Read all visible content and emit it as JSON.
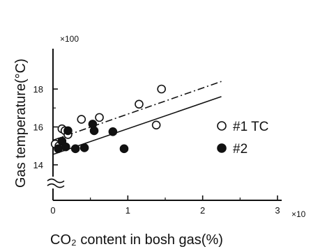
{
  "chart_data": {
    "type": "scatter",
    "title": "",
    "xlabel": "CO₂ content in bosh gas(%)",
    "ylabel": "Gas temperature(°C)",
    "x_multiplier": "×10",
    "y_multiplier": "×100",
    "xlim": [
      0,
      3
    ],
    "ylim": [
      14,
      19
    ],
    "x_ticks": [
      0,
      1,
      2,
      3
    ],
    "y_ticks": [
      14,
      16,
      18
    ],
    "legend_position": "right",
    "grid": false,
    "series": [
      {
        "name": "#1 TC",
        "marker": "open-circle",
        "points": [
          [
            0.03,
            15.1
          ],
          [
            0.08,
            15.0
          ],
          [
            0.12,
            15.9
          ],
          [
            0.16,
            15.8
          ],
          [
            0.2,
            15.6
          ],
          [
            0.38,
            16.4
          ],
          [
            0.62,
            16.5
          ],
          [
            1.15,
            17.2
          ],
          [
            1.38,
            16.1
          ],
          [
            1.45,
            18.0
          ]
        ],
        "fit_line": {
          "x": [
            0.0,
            2.25
          ],
          "y": [
            15.3,
            18.4
          ],
          "style": "dash-dot"
        }
      },
      {
        "name": "#2",
        "marker": "filled-circle",
        "points": [
          [
            0.07,
            14.85
          ],
          [
            0.12,
            15.25
          ],
          [
            0.17,
            14.95
          ],
          [
            0.2,
            15.8
          ],
          [
            0.3,
            14.85
          ],
          [
            0.42,
            14.9
          ],
          [
            0.53,
            16.15
          ],
          [
            0.55,
            15.8
          ],
          [
            0.8,
            15.75
          ],
          [
            0.95,
            14.85
          ]
        ],
        "fit_line": {
          "x": [
            0.0,
            2.25
          ],
          "y": [
            14.55,
            17.6
          ],
          "style": "solid"
        }
      }
    ]
  }
}
